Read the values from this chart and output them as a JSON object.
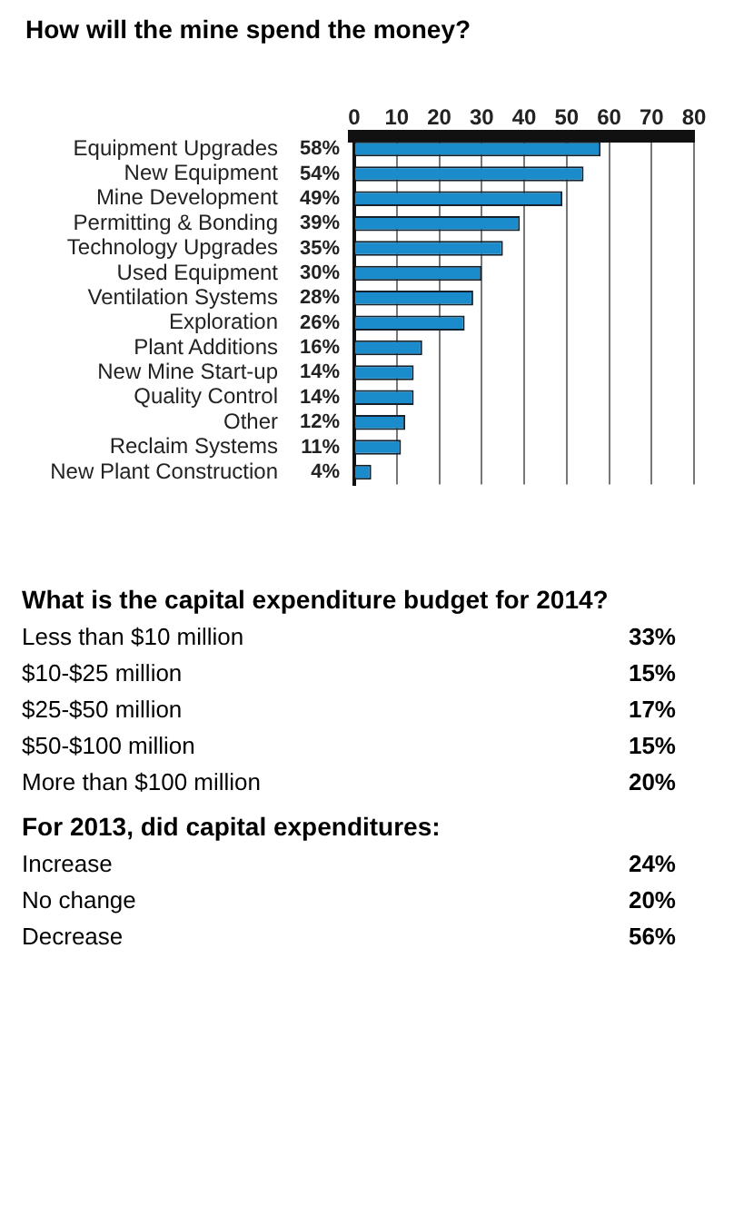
{
  "chart_data": [
    {
      "type": "bar",
      "title": "How will the mine spend the money?",
      "orientation": "horizontal",
      "categories": [
        "Equipment Upgrades",
        "New Equipment",
        "Mine Development",
        "Permitting & Bonding",
        "Technology Upgrades",
        "Used Equipment",
        "Ventilation Systems",
        "Exploration",
        "Plant Additions",
        "New Mine Start-up",
        "Quality Control",
        "Other",
        "Reclaim Systems",
        "New Plant Construction"
      ],
      "values": [
        58,
        54,
        49,
        39,
        35,
        30,
        28,
        26,
        16,
        14,
        14,
        12,
        11,
        4
      ],
      "value_labels": [
        "58%",
        "54%",
        "49%",
        "39%",
        "35%",
        "30%",
        "28%",
        "26%",
        "16%",
        "14%",
        "14%",
        "12%",
        "11%",
        "4%"
      ],
      "color": "#1a8ccc",
      "xlim": [
        0,
        80
      ],
      "xticks": [
        0,
        10,
        20,
        30,
        40,
        50,
        60,
        70,
        80
      ],
      "grid": "x"
    },
    {
      "type": "other",
      "title": "What is the capital expenditure budget for 2014?",
      "categories": [
        "Less than $10 million",
        "$10-$25 million",
        "$25-$50 million",
        "$50-$100 million",
        "More than $100 million"
      ],
      "value_labels": [
        "33%",
        "15%",
        "17%",
        "15%",
        "20%"
      ]
    },
    {
      "type": "other",
      "title": "For 2013, did capital expenditures:",
      "categories": [
        "Increase",
        "No change",
        "Decrease"
      ],
      "value_labels": [
        "24%",
        "20%",
        "56%"
      ]
    }
  ]
}
